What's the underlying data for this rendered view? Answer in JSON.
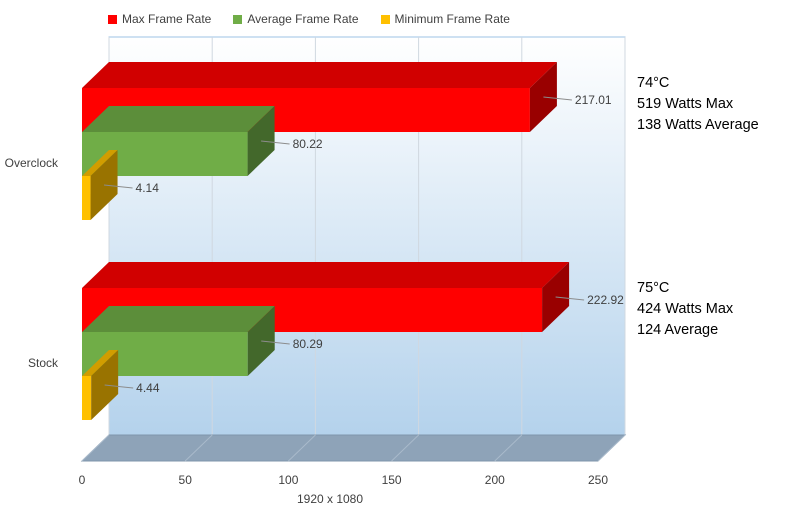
{
  "chart_data": {
    "type": "bar",
    "orientation": "horizontal",
    "categories": [
      "Overclock",
      "Stock"
    ],
    "series": [
      {
        "name": "Max Frame Rate",
        "values": [
          217.01,
          222.92
        ],
        "color": "#ff0000"
      },
      {
        "name": "Average Frame Rate",
        "values": [
          80.22,
          80.29
        ],
        "color": "#70ad47"
      },
      {
        "name": "Minimum Frame Rate",
        "values": [
          4.14,
          4.44
        ],
        "color": "#ffc000"
      }
    ],
    "data_labels": {
      "series_0": [
        "217.01",
        "222.92"
      ],
      "series_1": [
        "80.22",
        "80.29"
      ],
      "series_2": [
        "4.14",
        "4.44"
      ]
    },
    "xlabel": "1920 x 1080",
    "xlim": [
      0,
      250
    ],
    "x_ticks": [
      "0",
      "50",
      "100",
      "150",
      "200",
      "250"
    ],
    "tick_values": [
      0,
      50,
      100,
      150,
      200,
      250
    ],
    "grid": true,
    "legend_position": "top",
    "style": "3d",
    "annotations": [
      {
        "category": "Overclock",
        "lines": [
          "74°C",
          "519 Watts Max",
          "138 Watts Average"
        ]
      },
      {
        "category": "Stock",
        "lines": [
          "75°C",
          "424 Watts Max",
          "124 Average"
        ]
      }
    ]
  }
}
